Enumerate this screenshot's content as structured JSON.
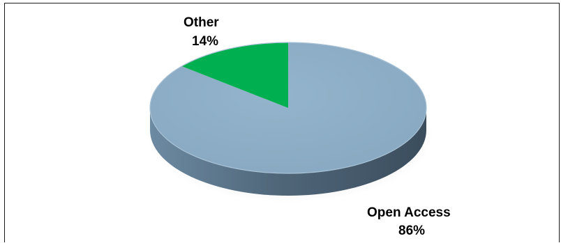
{
  "chart_data": {
    "type": "pie",
    "categories": [
      "Open Access",
      "Other"
    ],
    "values": [
      86,
      14
    ],
    "data_labels": [
      {
        "category": "Open Access",
        "value_text": "86%"
      },
      {
        "category": "Other",
        "value_text": "14%"
      }
    ],
    "colors": {
      "Open Access": "#8fb0c8",
      "Other": "#00b050"
    },
    "style": "3d-tilted",
    "legend": "none"
  }
}
